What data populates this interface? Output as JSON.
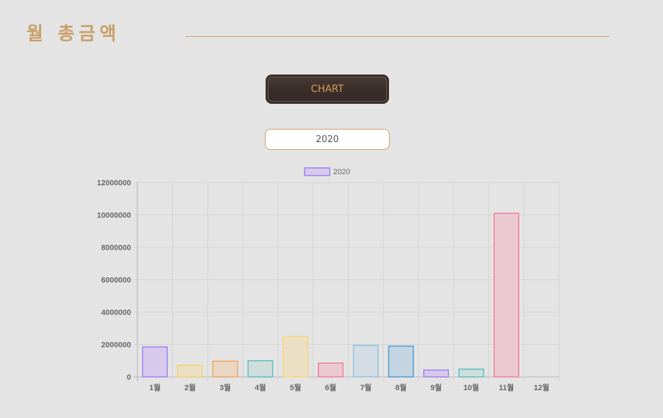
{
  "page": {
    "title": "월 총금액"
  },
  "controls": {
    "chart_button_label": "CHART",
    "year_value": "2020"
  },
  "colors": {
    "title": "#c9a06a",
    "button_text": "#d49a5c"
  },
  "chart_data": {
    "type": "bar",
    "categories": [
      "1월",
      "2월",
      "3월",
      "4월",
      "5월",
      "6월",
      "7월",
      "8월",
      "9월",
      "10월",
      "11월",
      "12월"
    ],
    "series": [
      {
        "name": "2020",
        "values": [
          1850000,
          720000,
          970000,
          1000000,
          2500000,
          850000,
          1950000,
          1900000,
          420000,
          480000,
          10100000,
          0
        ]
      }
    ],
    "bar_colors": [
      {
        "fill": "#d7c9ec",
        "stroke": "#9f7ff0"
      },
      {
        "fill": "#ebdfc4",
        "stroke": "#f3cf6c"
      },
      {
        "fill": "#ebd6c4",
        "stroke": "#f0a45c"
      },
      {
        "fill": "#cfdedd",
        "stroke": "#56c0bd"
      },
      {
        "fill": "#ebdfc4",
        "stroke": "#f6d77c"
      },
      {
        "fill": "#ebc9d0",
        "stroke": "#f07f99"
      },
      {
        "fill": "#d3dde3",
        "stroke": "#8fc1de"
      },
      {
        "fill": "#c3d5e3",
        "stroke": "#4a9ad4"
      },
      {
        "fill": "#d7c9ec",
        "stroke": "#9f7ff0"
      },
      {
        "fill": "#cfdedd",
        "stroke": "#56c0bd"
      },
      {
        "fill": "#ebc9d0",
        "stroke": "#f07f99"
      },
      {
        "fill": "#ebd6c4",
        "stroke": "#f0a45c"
      }
    ],
    "y_ticks": [
      "0",
      "2000000",
      "4000000",
      "6000000",
      "8000000",
      "10000000",
      "12000000"
    ],
    "ylim": [
      0,
      12000000
    ],
    "grid": true,
    "legend_position": "top-center"
  }
}
